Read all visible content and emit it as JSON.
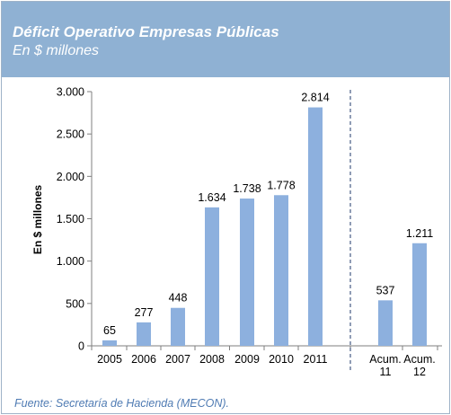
{
  "header": {
    "title": "Déficit Operativo Empresas Públicas",
    "subtitle": "En $ millones"
  },
  "footer": {
    "source": "Fuente: Secretaría de Hacienda (MECON)."
  },
  "colors": {
    "header_bg": "#8fb1d3",
    "bar": "#8db0de",
    "source_text": "#4f7bb3"
  },
  "chart_data": {
    "type": "bar",
    "ylabel": "En $ millones",
    "ylim": [
      0,
      3000
    ],
    "yticks": [
      0,
      500,
      1000,
      1500,
      2000,
      2500,
      3000
    ],
    "ytick_labels": [
      "0",
      "500",
      "1.000",
      "1.500",
      "2.000",
      "2.500",
      "3.000"
    ],
    "grid": false,
    "categories": [
      [
        "2005"
      ],
      [
        "2006"
      ],
      [
        "2007"
      ],
      [
        "2008"
      ],
      [
        "2009"
      ],
      [
        "2010"
      ],
      [
        "2011"
      ],
      [
        "Acum.",
        "11"
      ],
      [
        "Acum.",
        "12"
      ]
    ],
    "values": [
      65,
      277,
      448,
      1634,
      1738,
      1778,
      2814,
      537,
      1211
    ],
    "value_labels": [
      "65",
      "277",
      "448",
      "1.634",
      "1.738",
      "1.778",
      "2.814",
      "537",
      "1.211"
    ],
    "separator_after_index": 6
  }
}
